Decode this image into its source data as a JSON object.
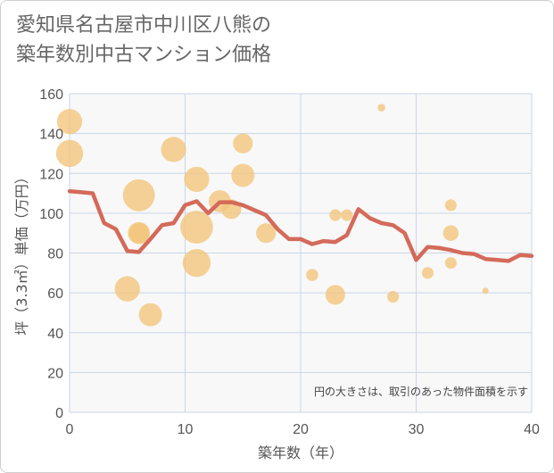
{
  "chart_data": {
    "type": "scatter",
    "title_lines": [
      "愛知県名古屋市中川区八熊の",
      "築年数別中古マンション価格"
    ],
    "xlabel": "築年数（年）",
    "ylabel": "坪（3.3㎡）単価（万円）",
    "xlim": [
      0,
      40
    ],
    "ylim": [
      0,
      160
    ],
    "x_ticks": [
      "0",
      "10",
      "20",
      "30",
      "40"
    ],
    "y_ticks": [
      "0",
      "20",
      "40",
      "60",
      "80",
      "100",
      "120",
      "140",
      "160"
    ],
    "grid": true,
    "note": "円の大きさは、取引のあった物件面積を示す",
    "colors": {
      "bubble": "#f2c47a",
      "line": "#d46a5a",
      "grid": "#c9d6e6",
      "plot_bg": "#f8f8f8"
    },
    "bubbles": [
      {
        "x": 0,
        "y": 146,
        "size": 65
      },
      {
        "x": 0,
        "y": 130,
        "size": 75
      },
      {
        "x": 5,
        "y": 62,
        "size": 65
      },
      {
        "x": 6,
        "y": 109,
        "size": 105
      },
      {
        "x": 6,
        "y": 90,
        "size": 50
      },
      {
        "x": 6,
        "y": 90,
        "size": 40
      },
      {
        "x": 7,
        "y": 49,
        "size": 55
      },
      {
        "x": 9,
        "y": 132,
        "size": 65
      },
      {
        "x": 11,
        "y": 117,
        "size": 65
      },
      {
        "x": 11,
        "y": 93,
        "size": 110
      },
      {
        "x": 11,
        "y": 75,
        "size": 80
      },
      {
        "x": 13,
        "y": 106,
        "size": 50
      },
      {
        "x": 14,
        "y": 102,
        "size": 40
      },
      {
        "x": 15,
        "y": 135,
        "size": 40
      },
      {
        "x": 15,
        "y": 119,
        "size": 55
      },
      {
        "x": 17,
        "y": 90,
        "size": 40
      },
      {
        "x": 21,
        "y": 69,
        "size": 15
      },
      {
        "x": 23,
        "y": 99,
        "size": 14
      },
      {
        "x": 23,
        "y": 59,
        "size": 40
      },
      {
        "x": 24,
        "y": 99,
        "size": 14
      },
      {
        "x": 27,
        "y": 153,
        "size": 6
      },
      {
        "x": 28,
        "y": 58,
        "size": 14
      },
      {
        "x": 31,
        "y": 70,
        "size": 14
      },
      {
        "x": 33,
        "y": 104,
        "size": 14
      },
      {
        "x": 33,
        "y": 90,
        "size": 25
      },
      {
        "x": 33,
        "y": 75,
        "size": 14
      },
      {
        "x": 36,
        "y": 61,
        "size": 4
      }
    ],
    "line": {
      "x": [
        0,
        1,
        2,
        3,
        4,
        5,
        6,
        7,
        8,
        9,
        10,
        11,
        12,
        13,
        14,
        15,
        16,
        17,
        18,
        19,
        20,
        21,
        22,
        23,
        24,
        25,
        26,
        27,
        28,
        29,
        30,
        31,
        32,
        33,
        34,
        35,
        36,
        37,
        38,
        39,
        40
      ],
      "y": [
        111,
        110.5,
        110,
        95,
        92,
        81,
        80.5,
        87,
        94,
        95,
        104,
        106,
        100,
        105.5,
        105.5,
        104,
        101.5,
        99,
        92,
        87,
        87,
        84.5,
        86,
        85.5,
        89,
        102,
        97.5,
        95,
        94,
        90,
        76.5,
        83,
        82.5,
        81.5,
        80,
        79.5,
        77,
        76.5,
        76,
        79,
        78.5
      ]
    }
  }
}
